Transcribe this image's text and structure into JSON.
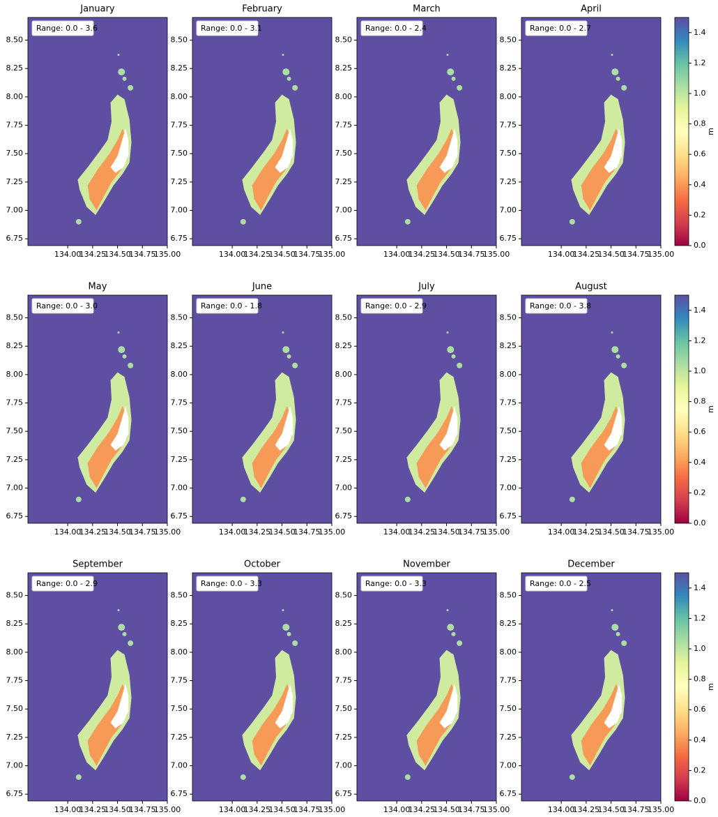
{
  "chart_data": [
    {
      "type": "map",
      "title": "January",
      "annotation": "Range: 0.0 - 3.6",
      "background": "#5e4fa2",
      "xlim": [
        133.6,
        135.0
      ],
      "ylim": [
        6.69,
        8.7
      ],
      "xticks": [
        {
          "value": 134,
          "label": "134.00"
        },
        {
          "value": 134.25,
          "label": "134.25"
        },
        {
          "value": 134.5,
          "label": "134.50"
        },
        {
          "value": 134.75,
          "label": "134.75"
        },
        {
          "value": 135,
          "label": "135.00"
        }
      ],
      "yticks": [
        {
          "value": 6.75,
          "label": "6.75"
        },
        {
          "value": 7,
          "label": "7.00"
        },
        {
          "value": 7.25,
          "label": "7.25"
        },
        {
          "value": 7.5,
          "label": "7.50"
        },
        {
          "value": 7.75,
          "label": "7.75"
        },
        {
          "value": 8,
          "label": "8.00"
        },
        {
          "value": 8.25,
          "label": "8.25"
        },
        {
          "value": 8.5,
          "label": "8.50"
        }
      ]
    },
    {
      "type": "map",
      "title": "February",
      "annotation": "Range: 0.0 - 3.1",
      "background": "#5e4fa2",
      "xlim": [
        133.6,
        135.0
      ],
      "ylim": [
        6.69,
        8.7
      ],
      "xticks": [
        {
          "value": 134,
          "label": "134.00"
        },
        {
          "value": 134.25,
          "label": "134.25"
        },
        {
          "value": 134.5,
          "label": "134.50"
        },
        {
          "value": 134.75,
          "label": "134.75"
        },
        {
          "value": 135,
          "label": "135.00"
        }
      ],
      "yticks": [
        {
          "value": 6.75,
          "label": "6.75"
        },
        {
          "value": 7,
          "label": "7.00"
        },
        {
          "value": 7.25,
          "label": "7.25"
        },
        {
          "value": 7.5,
          "label": "7.50"
        },
        {
          "value": 7.75,
          "label": "7.75"
        },
        {
          "value": 8,
          "label": "8.00"
        },
        {
          "value": 8.25,
          "label": "8.25"
        },
        {
          "value": 8.5,
          "label": "8.50"
        }
      ]
    },
    {
      "type": "map",
      "title": "March",
      "annotation": "Range: 0.0 - 2.4",
      "background": "#5e4fa2",
      "xlim": [
        133.6,
        135.0
      ],
      "ylim": [
        6.69,
        8.7
      ],
      "xticks": [
        {
          "value": 134,
          "label": "134.00"
        },
        {
          "value": 134.25,
          "label": "134.25"
        },
        {
          "value": 134.5,
          "label": "134.50"
        },
        {
          "value": 134.75,
          "label": "134.75"
        },
        {
          "value": 135,
          "label": "135.00"
        }
      ],
      "yticks": [
        {
          "value": 6.75,
          "label": "6.75"
        },
        {
          "value": 7,
          "label": "7.00"
        },
        {
          "value": 7.25,
          "label": "7.25"
        },
        {
          "value": 7.5,
          "label": "7.50"
        },
        {
          "value": 7.75,
          "label": "7.75"
        },
        {
          "value": 8,
          "label": "8.00"
        },
        {
          "value": 8.25,
          "label": "8.25"
        },
        {
          "value": 8.5,
          "label": "8.50"
        }
      ]
    },
    {
      "type": "map",
      "title": "April",
      "annotation": "Range: 0.0 - 2.7",
      "background": "#5e4fa2",
      "xlim": [
        133.6,
        135.0
      ],
      "ylim": [
        6.69,
        8.7
      ],
      "xticks": [
        {
          "value": 134,
          "label": "134.00"
        },
        {
          "value": 134.25,
          "label": "134.25"
        },
        {
          "value": 134.5,
          "label": "134.50"
        },
        {
          "value": 134.75,
          "label": "134.75"
        },
        {
          "value": 135,
          "label": "135.00"
        }
      ],
      "yticks": [
        {
          "value": 6.75,
          "label": "6.75"
        },
        {
          "value": 7,
          "label": "7.00"
        },
        {
          "value": 7.25,
          "label": "7.25"
        },
        {
          "value": 7.5,
          "label": "7.50"
        },
        {
          "value": 7.75,
          "label": "7.75"
        },
        {
          "value": 8,
          "label": "8.00"
        },
        {
          "value": 8.25,
          "label": "8.25"
        },
        {
          "value": 8.5,
          "label": "8.50"
        }
      ]
    },
    {
      "type": "map",
      "title": "May",
      "annotation": "Range: 0.0 - 3.0",
      "background": "#5e4fa2",
      "xlim": [
        133.6,
        135.0
      ],
      "ylim": [
        6.69,
        8.7
      ],
      "xticks": [
        {
          "value": 134,
          "label": "134.00"
        },
        {
          "value": 134.25,
          "label": "134.25"
        },
        {
          "value": 134.5,
          "label": "134.50"
        },
        {
          "value": 134.75,
          "label": "134.75"
        },
        {
          "value": 135,
          "label": "135.00"
        }
      ],
      "yticks": [
        {
          "value": 6.75,
          "label": "6.75"
        },
        {
          "value": 7,
          "label": "7.00"
        },
        {
          "value": 7.25,
          "label": "7.25"
        },
        {
          "value": 7.5,
          "label": "7.50"
        },
        {
          "value": 7.75,
          "label": "7.75"
        },
        {
          "value": 8,
          "label": "8.00"
        },
        {
          "value": 8.25,
          "label": "8.25"
        },
        {
          "value": 8.5,
          "label": "8.50"
        }
      ]
    },
    {
      "type": "map",
      "title": "June",
      "annotation": "Range: 0.0 - 1.8",
      "background": "#5e4fa2",
      "xlim": [
        133.6,
        135.0
      ],
      "ylim": [
        6.69,
        8.7
      ],
      "xticks": [
        {
          "value": 134,
          "label": "134.00"
        },
        {
          "value": 134.25,
          "label": "134.25"
        },
        {
          "value": 134.5,
          "label": "134.50"
        },
        {
          "value": 134.75,
          "label": "134.75"
        },
        {
          "value": 135,
          "label": "135.00"
        }
      ],
      "yticks": [
        {
          "value": 6.75,
          "label": "6.75"
        },
        {
          "value": 7,
          "label": "7.00"
        },
        {
          "value": 7.25,
          "label": "7.25"
        },
        {
          "value": 7.5,
          "label": "7.50"
        },
        {
          "value": 7.75,
          "label": "7.75"
        },
        {
          "value": 8,
          "label": "8.00"
        },
        {
          "value": 8.25,
          "label": "8.25"
        },
        {
          "value": 8.5,
          "label": "8.50"
        }
      ]
    },
    {
      "type": "map",
      "title": "July",
      "annotation": "Range: 0.0 - 2.9",
      "background": "#5e4fa2",
      "xlim": [
        133.6,
        135.0
      ],
      "ylim": [
        6.69,
        8.7
      ],
      "xticks": [
        {
          "value": 134,
          "label": "134.00"
        },
        {
          "value": 134.25,
          "label": "134.25"
        },
        {
          "value": 134.5,
          "label": "134.50"
        },
        {
          "value": 134.75,
          "label": "134.75"
        },
        {
          "value": 135,
          "label": "135.00"
        }
      ],
      "yticks": [
        {
          "value": 6.75,
          "label": "6.75"
        },
        {
          "value": 7,
          "label": "7.00"
        },
        {
          "value": 7.25,
          "label": "7.25"
        },
        {
          "value": 7.5,
          "label": "7.50"
        },
        {
          "value": 7.75,
          "label": "7.75"
        },
        {
          "value": 8,
          "label": "8.00"
        },
        {
          "value": 8.25,
          "label": "8.25"
        },
        {
          "value": 8.5,
          "label": "8.50"
        }
      ]
    },
    {
      "type": "map",
      "title": "August",
      "annotation": "Range: 0.0 - 3.8",
      "background": "#5e4fa2",
      "xlim": [
        133.6,
        135.0
      ],
      "ylim": [
        6.69,
        8.7
      ],
      "xticks": [
        {
          "value": 134,
          "label": "134.00"
        },
        {
          "value": 134.25,
          "label": "134.25"
        },
        {
          "value": 134.5,
          "label": "134.50"
        },
        {
          "value": 134.75,
          "label": "134.75"
        },
        {
          "value": 135,
          "label": "135.00"
        }
      ],
      "yticks": [
        {
          "value": 6.75,
          "label": "6.75"
        },
        {
          "value": 7,
          "label": "7.00"
        },
        {
          "value": 7.25,
          "label": "7.25"
        },
        {
          "value": 7.5,
          "label": "7.50"
        },
        {
          "value": 7.75,
          "label": "7.75"
        },
        {
          "value": 8,
          "label": "8.00"
        },
        {
          "value": 8.25,
          "label": "8.25"
        },
        {
          "value": 8.5,
          "label": "8.50"
        }
      ]
    },
    {
      "type": "map",
      "title": "September",
      "annotation": "Range: 0.0 - 2.9",
      "background": "#5e4fa2",
      "xlim": [
        133.6,
        135.0
      ],
      "ylim": [
        6.69,
        8.7
      ],
      "xticks": [
        {
          "value": 134,
          "label": "134.00"
        },
        {
          "value": 134.25,
          "label": "134.25"
        },
        {
          "value": 134.5,
          "label": "134.50"
        },
        {
          "value": 134.75,
          "label": "134.75"
        },
        {
          "value": 135,
          "label": "135.00"
        }
      ],
      "yticks": [
        {
          "value": 6.75,
          "label": "6.75"
        },
        {
          "value": 7,
          "label": "7.00"
        },
        {
          "value": 7.25,
          "label": "7.25"
        },
        {
          "value": 7.5,
          "label": "7.50"
        },
        {
          "value": 7.75,
          "label": "7.75"
        },
        {
          "value": 8,
          "label": "8.00"
        },
        {
          "value": 8.25,
          "label": "8.25"
        },
        {
          "value": 8.5,
          "label": "8.50"
        }
      ]
    },
    {
      "type": "map",
      "title": "October",
      "annotation": "Range: 0.0 - 3.3",
      "background": "#5e4fa2",
      "xlim": [
        133.6,
        135.0
      ],
      "ylim": [
        6.69,
        8.7
      ],
      "xticks": [
        {
          "value": 134,
          "label": "134.00"
        },
        {
          "value": 134.25,
          "label": "134.25"
        },
        {
          "value": 134.5,
          "label": "134.50"
        },
        {
          "value": 134.75,
          "label": "134.75"
        },
        {
          "value": 135,
          "label": "135.00"
        }
      ],
      "yticks": [
        {
          "value": 6.75,
          "label": "6.75"
        },
        {
          "value": 7,
          "label": "7.00"
        },
        {
          "value": 7.25,
          "label": "7.25"
        },
        {
          "value": 7.5,
          "label": "7.50"
        },
        {
          "value": 7.75,
          "label": "7.75"
        },
        {
          "value": 8,
          "label": "8.00"
        },
        {
          "value": 8.25,
          "label": "8.25"
        },
        {
          "value": 8.5,
          "label": "8.50"
        }
      ]
    },
    {
      "type": "map",
      "title": "November",
      "annotation": "Range: 0.0 - 3.3",
      "background": "#5e4fa2",
      "xlim": [
        133.6,
        135.0
      ],
      "ylim": [
        6.69,
        8.7
      ],
      "xticks": [
        {
          "value": 134,
          "label": "134.00"
        },
        {
          "value": 134.25,
          "label": "134.25"
        },
        {
          "value": 134.5,
          "label": "134.50"
        },
        {
          "value": 134.75,
          "label": "134.75"
        },
        {
          "value": 135,
          "label": "135.00"
        }
      ],
      "yticks": [
        {
          "value": 6.75,
          "label": "6.75"
        },
        {
          "value": 7,
          "label": "7.00"
        },
        {
          "value": 7.25,
          "label": "7.25"
        },
        {
          "value": 7.5,
          "label": "7.50"
        },
        {
          "value": 7.75,
          "label": "7.75"
        },
        {
          "value": 8,
          "label": "8.00"
        },
        {
          "value": 8.25,
          "label": "8.25"
        },
        {
          "value": 8.5,
          "label": "8.50"
        }
      ]
    },
    {
      "type": "map",
      "title": "December",
      "annotation": "Range: 0.0 - 2.5",
      "background": "#5e4fa2",
      "xlim": [
        133.6,
        135.0
      ],
      "ylim": [
        6.69,
        8.7
      ],
      "xticks": [
        {
          "value": 134,
          "label": "134.00"
        },
        {
          "value": 134.25,
          "label": "134.25"
        },
        {
          "value": 134.5,
          "label": "134.50"
        },
        {
          "value": 134.75,
          "label": "134.75"
        },
        {
          "value": 135,
          "label": "135.00"
        }
      ],
      "yticks": [
        {
          "value": 6.75,
          "label": "6.75"
        },
        {
          "value": 7,
          "label": "7.00"
        },
        {
          "value": 7.25,
          "label": "7.25"
        },
        {
          "value": 7.5,
          "label": "7.50"
        },
        {
          "value": 7.75,
          "label": "7.75"
        },
        {
          "value": 8,
          "label": "8.00"
        },
        {
          "value": 8.25,
          "label": "8.25"
        },
        {
          "value": 8.5,
          "label": "8.50"
        }
      ]
    },
    {
      "type": "colorbar",
      "label": "m",
      "ylim": [
        0,
        1.5
      ],
      "colors": [
        "#9e0142",
        "#d53e4f",
        "#f46d43",
        "#fdae61",
        "#fee08b",
        "#ffffbf",
        "#e6f598",
        "#abdda4",
        "#66c2a5",
        "#3288bd",
        "#5e4fa2"
      ],
      "yticks": [
        {
          "value": 0,
          "label": "0.0"
        },
        {
          "value": 0.2,
          "label": "0.2"
        },
        {
          "value": 0.4,
          "label": "0.4"
        },
        {
          "value": 0.6,
          "label": "0.6"
        },
        {
          "value": 0.8,
          "label": "0.8"
        },
        {
          "value": 1,
          "label": "1.0"
        },
        {
          "value": 1.2,
          "label": "1.2"
        },
        {
          "value": 1.4,
          "label": "1.4"
        }
      ]
    },
    {
      "type": "colorbar",
      "label": "m",
      "ylim": [
        0,
        1.5
      ],
      "colors": [
        "#9e0142",
        "#d53e4f",
        "#f46d43",
        "#fdae61",
        "#fee08b",
        "#ffffbf",
        "#e6f598",
        "#abdda4",
        "#66c2a5",
        "#3288bd",
        "#5e4fa2"
      ],
      "yticks": [
        {
          "value": 0,
          "label": "0.0"
        },
        {
          "value": 0.2,
          "label": "0.2"
        },
        {
          "value": 0.4,
          "label": "0.4"
        },
        {
          "value": 0.6,
          "label": "0.6"
        },
        {
          "value": 0.8,
          "label": "0.8"
        },
        {
          "value": 1,
          "label": "1.0"
        },
        {
          "value": 1.2,
          "label": "1.2"
        },
        {
          "value": 1.4,
          "label": "1.4"
        }
      ]
    },
    {
      "type": "colorbar",
      "label": "m",
      "ylim": [
        0,
        1.5
      ],
      "colors": [
        "#9e0142",
        "#d53e4f",
        "#f46d43",
        "#fdae61",
        "#fee08b",
        "#ffffbf",
        "#e6f598",
        "#abdda4",
        "#66c2a5",
        "#3288bd",
        "#5e4fa2"
      ],
      "yticks": [
        {
          "value": 0,
          "label": "0.0"
        },
        {
          "value": 0.2,
          "label": "0.2"
        },
        {
          "value": 0.4,
          "label": "0.4"
        },
        {
          "value": 0.6,
          "label": "0.6"
        },
        {
          "value": 0.8,
          "label": "0.8"
        },
        {
          "value": 1,
          "label": "1.0"
        },
        {
          "value": 1.2,
          "label": "1.2"
        },
        {
          "value": 1.4,
          "label": "1.4"
        }
      ]
    }
  ]
}
